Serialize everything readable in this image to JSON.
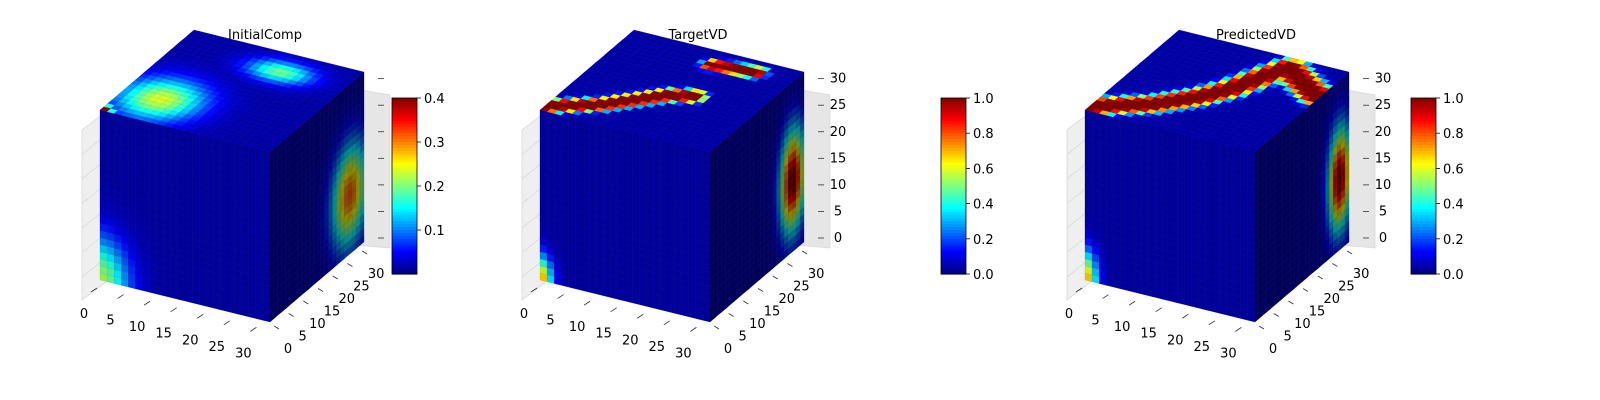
{
  "chart_data": [
    {
      "type": "3d-voxel",
      "title": "InitialComp",
      "axes": {
        "x": {
          "ticks": [
            "0",
            "5",
            "10",
            "15",
            "20",
            "25",
            "30"
          ],
          "range": [
            0,
            32
          ]
        },
        "y": {
          "ticks": [
            "0",
            "5",
            "10",
            "15",
            "20",
            "25",
            "30"
          ],
          "range": [
            0,
            32
          ]
        },
        "z": {
          "ticks": [],
          "range": [
            0,
            32
          ]
        }
      },
      "colorbar": {
        "colormap": "jet",
        "range": [
          0.0,
          0.4
        ],
        "ticks": [
          "0.1",
          "0.2",
          "0.3",
          "0.4"
        ]
      },
      "features": [
        {
          "face": "top",
          "center": [
            0.22,
            0.25
          ],
          "sigma": [
            0.16,
            0.16
          ],
          "value": 0.22
        },
        {
          "face": "top",
          "center": [
            0.62,
            0.8
          ],
          "sigma": [
            0.13,
            0.08
          ],
          "value": 0.18
        },
        {
          "face": "top",
          "center": [
            0.02,
            0.02
          ],
          "sigma": [
            0.03,
            0.03
          ],
          "value": 0.4
        },
        {
          "face": "front",
          "center": [
            0.0,
            0.0
          ],
          "sigma": [
            0.12,
            0.18
          ],
          "value": 0.2
        },
        {
          "face": "side",
          "center": [
            0.85,
            0.35
          ],
          "sigma": [
            0.13,
            0.2
          ],
          "value": 0.3
        }
      ]
    },
    {
      "type": "3d-voxel",
      "title": "TargetVD",
      "axes": {
        "x": {
          "ticks": [
            "0",
            "5",
            "10",
            "15",
            "20",
            "25",
            "30"
          ],
          "range": [
            0,
            32
          ]
        },
        "y": {
          "ticks": [
            "0",
            "5",
            "10",
            "15",
            "20",
            "25",
            "30"
          ],
          "range": [
            0,
            32
          ]
        },
        "z": {
          "ticks": [
            "0",
            "5",
            "10",
            "15",
            "20",
            "25",
            "30"
          ],
          "range": [
            0,
            32
          ]
        }
      },
      "colorbar": {
        "colormap": "jet",
        "range": [
          0.0,
          1.0
        ],
        "ticks": [
          "0.0",
          "0.2",
          "0.4",
          "0.6",
          "0.8",
          "1.0"
        ]
      },
      "features": [
        {
          "face": "top",
          "path": [
            [
              0.0,
              0.05
            ],
            [
              0.25,
              0.2
            ],
            [
              0.5,
              0.45
            ],
            [
              0.62,
              0.5
            ]
          ],
          "width": 0.07,
          "value": 1.0
        },
        {
          "face": "top",
          "path": [
            [
              0.55,
              0.85
            ],
            [
              0.78,
              0.88
            ]
          ],
          "width": 0.06,
          "value": 1.0
        },
        {
          "face": "front",
          "center": [
            0.0,
            0.0
          ],
          "sigma": [
            0.05,
            0.1
          ],
          "value": 0.7
        },
        {
          "face": "side",
          "center": [
            0.88,
            0.42
          ],
          "sigma": [
            0.09,
            0.2
          ],
          "value": 1.0
        }
      ]
    },
    {
      "type": "3d-voxel",
      "title": "PredictedVD",
      "axes": {
        "x": {
          "ticks": [
            "0",
            "5",
            "10",
            "15",
            "20",
            "25",
            "30"
          ],
          "range": [
            0,
            32
          ]
        },
        "y": {
          "ticks": [
            "0",
            "5",
            "10",
            "15",
            "20",
            "25",
            "30"
          ],
          "range": [
            0,
            32
          ]
        },
        "z": {
          "ticks": [
            "0",
            "5",
            "10",
            "15",
            "20",
            "25",
            "30"
          ],
          "range": [
            0,
            32
          ]
        }
      },
      "colorbar": {
        "colormap": "jet",
        "range": [
          0.0,
          1.0
        ],
        "ticks": [
          "0.0",
          "0.2",
          "0.4",
          "0.6",
          "0.8",
          "1.0"
        ]
      },
      "features": [
        {
          "face": "top",
          "path": [
            [
              0.0,
              0.05
            ],
            [
              0.28,
              0.22
            ],
            [
              0.45,
              0.4
            ],
            [
              0.55,
              0.55
            ],
            [
              0.62,
              0.72
            ],
            [
              0.7,
              0.9
            ],
            [
              0.9,
              0.75
            ],
            [
              1.0,
              0.68
            ]
          ],
          "width": 0.09,
          "value": 1.0
        },
        {
          "face": "front",
          "center": [
            0.0,
            0.0
          ],
          "sigma": [
            0.05,
            0.12
          ],
          "value": 0.7
        },
        {
          "face": "side",
          "center": [
            0.9,
            0.42
          ],
          "sigma": [
            0.08,
            0.2
          ],
          "value": 1.0
        }
      ]
    }
  ]
}
